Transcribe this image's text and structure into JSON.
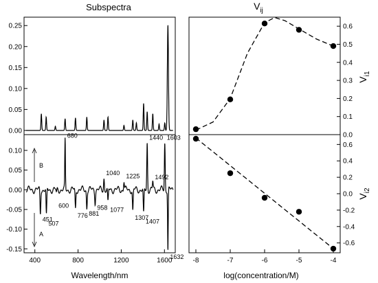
{
  "chart_data": [
    {
      "type": "line",
      "title": "Subspectra",
      "xlabel": "",
      "ylabel": "",
      "xlim": [
        300,
        1700
      ],
      "ylim": [
        -0.01,
        0.27
      ],
      "yticks": [
        "0.00",
        "0.05",
        "0.10",
        "0.15",
        "0.20",
        "0.25"
      ],
      "peaks": [
        [
          460,
          0.04
        ],
        [
          505,
          0.032
        ],
        [
          590,
          0.01
        ],
        [
          680,
          0.028
        ],
        [
          776,
          0.03
        ],
        [
          881,
          0.032
        ],
        [
          1040,
          0.025
        ],
        [
          1077,
          0.032
        ],
        [
          1225,
          0.012
        ],
        [
          1307,
          0.025
        ],
        [
          1340,
          0.018
        ],
        [
          1407,
          0.065
        ],
        [
          1440,
          0.045
        ],
        [
          1492,
          0.04
        ],
        [
          1550,
          0.015
        ],
        [
          1603,
          0.018
        ],
        [
          1632,
          0.252
        ]
      ]
    },
    {
      "type": "line",
      "title": "",
      "xlabel": "Wavelength/nm",
      "ylabel": "",
      "xlim": [
        300,
        1700
      ],
      "ylim": [
        -0.16,
        0.14
      ],
      "xticks": [
        "400",
        "800",
        "1200",
        "1600"
      ],
      "yticks": [
        "-0.15",
        "-0.10",
        "-0.05",
        "0.00",
        "0.05",
        "0.10"
      ],
      "peaks": [
        [
          451,
          -0.06
        ],
        [
          507,
          -0.07
        ],
        [
          600,
          -0.01
        ],
        [
          680,
          0.125
        ],
        [
          776,
          -0.05
        ],
        [
          881,
          -0.045
        ],
        [
          958,
          -0.03
        ],
        [
          1040,
          0.03
        ],
        [
          1077,
          -0.035
        ],
        [
          1225,
          0.022
        ],
        [
          1307,
          -0.055
        ],
        [
          1407,
          -0.065
        ],
        [
          1440,
          0.12
        ],
        [
          1492,
          0.02
        ],
        [
          1603,
          0.12
        ],
        [
          1632,
          -0.155
        ]
      ],
      "annotations": [
        {
          "text": "680",
          "x": 680,
          "y": 0.125
        },
        {
          "text": "600",
          "x": 600,
          "y": -0.025
        },
        {
          "text": "451",
          "x": 451,
          "y": -0.06
        },
        {
          "text": "507",
          "x": 507,
          "y": -0.07
        },
        {
          "text": "776",
          "x": 776,
          "y": -0.05
        },
        {
          "text": "881",
          "x": 881,
          "y": -0.045
        },
        {
          "text": "958",
          "x": 958,
          "y": -0.03
        },
        {
          "text": "1040",
          "x": 1040,
          "y": 0.03
        },
        {
          "text": "1077",
          "x": 1077,
          "y": -0.035
        },
        {
          "text": "1225",
          "x": 1225,
          "y": 0.022
        },
        {
          "text": "1307",
          "x": 1307,
          "y": -0.055
        },
        {
          "text": "1407",
          "x": 1407,
          "y": -0.065
        },
        {
          "text": "1440",
          "x": 1440,
          "y": 0.12
        },
        {
          "text": "1492",
          "x": 1492,
          "y": 0.02
        },
        {
          "text": "1603",
          "x": 1603,
          "y": 0.12
        },
        {
          "text": "1632",
          "x": 1632,
          "y": -0.155
        },
        {
          "text": "B",
          "x": 320,
          "y": 0.07
        },
        {
          "text": "A",
          "x": 320,
          "y": -0.115
        }
      ]
    },
    {
      "type": "scatter",
      "title": "V",
      "title_sub": "ij",
      "xlabel": "",
      "ylabel": "V",
      "ylabel_sub": "i1",
      "xlim": [
        -8.2,
        -3.8
      ],
      "ylim": [
        0.0,
        0.65
      ],
      "yticks": [
        "0.0",
        "0.1",
        "0.2",
        "0.3",
        "0.4",
        "0.5",
        "0.6"
      ],
      "x": [
        -8,
        -7,
        -6,
        -5,
        -4
      ],
      "y": [
        0.03,
        0.195,
        0.615,
        0.58,
        0.49
      ],
      "fit_curve": [
        [
          -8,
          0.025
        ],
        [
          -7.5,
          0.07
        ],
        [
          -7,
          0.2
        ],
        [
          -6.5,
          0.45
        ],
        [
          -6,
          0.62
        ],
        [
          -5.7,
          0.648
        ],
        [
          -5.4,
          0.63
        ],
        [
          -5,
          0.585
        ],
        [
          -4.5,
          0.53
        ],
        [
          -4,
          0.49
        ]
      ]
    },
    {
      "type": "scatter",
      "title": "",
      "xlabel": "log(concentration/M)",
      "ylabel": "V",
      "ylabel_sub": "i2",
      "xlim": [
        -8.2,
        -3.8
      ],
      "ylim": [
        -0.72,
        0.72
      ],
      "xticks": [
        "-8",
        "-7",
        "-6",
        "-5",
        "-4"
      ],
      "yticks": [
        "-0.6",
        "-0.4",
        "-0.2",
        "0.0",
        "0.2",
        "0.4",
        "0.6"
      ],
      "x": [
        -8,
        -7,
        -6,
        -5,
        -4
      ],
      "y": [
        0.67,
        0.25,
        -0.05,
        -0.22,
        -0.67
      ],
      "fit_curve": [
        [
          -8,
          0.68
        ],
        [
          -4,
          -0.67
        ]
      ]
    }
  ]
}
